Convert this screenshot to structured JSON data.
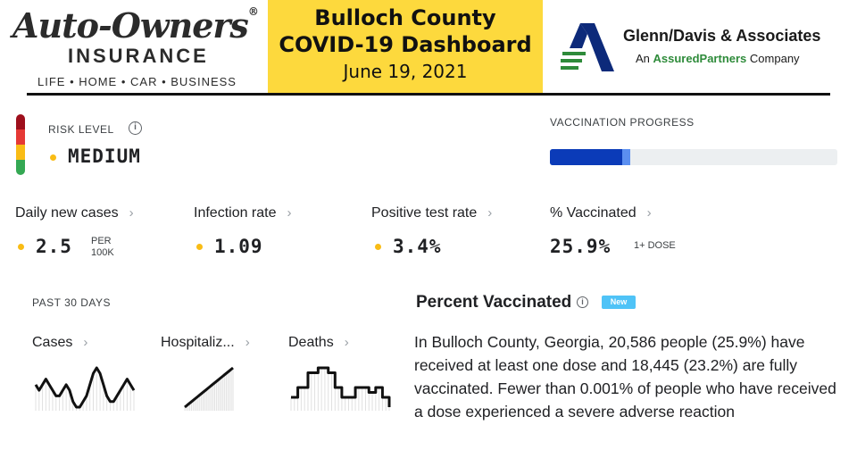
{
  "header": {
    "left_logo": {
      "name": "Auto-Owners",
      "subname": "INSURANCE",
      "tagline": "LIFE • HOME • CAR • BUSINESS",
      "registered_mark": "®"
    },
    "title": {
      "line1": "Bulloch County",
      "line2": "COVID-19 Dashboard",
      "date": "June 19, 2021",
      "background": "#fdd93d"
    },
    "right_logo": {
      "name": "Glenn/Davis & Associates",
      "sub_prefix": "An ",
      "sub_brand": "AssuredPartners",
      "sub_suffix": " Company"
    }
  },
  "risk": {
    "label": "RISK LEVEL",
    "info_icon": "info-circle-icon",
    "value": "MEDIUM",
    "dot_color": "#f9bc15",
    "scale_colors": [
      "#9e0f1c",
      "#e53935",
      "#f9bc15",
      "#34a853"
    ]
  },
  "vaccination_progress": {
    "label": "VACCINATION PROGRESS",
    "at_least_one_dose_fraction": 0.259,
    "fully_vaccinated_fraction": 0.232,
    "colors": {
      "fully": "#0b3bb8",
      "one_dose": "#5b8ff0",
      "track": "#eceff1"
    }
  },
  "metrics": [
    {
      "title": "Daily new cases",
      "value": "2.5",
      "unit_line1": "PER",
      "unit_line2": "100K",
      "has_dot": true
    },
    {
      "title": "Infection rate",
      "value": "1.09",
      "unit_line1": "",
      "unit_line2": "",
      "has_dot": true
    },
    {
      "title": "Positive test rate",
      "value": "3.4%",
      "unit_line1": "",
      "unit_line2": "",
      "has_dot": true
    },
    {
      "title": "% Vaccinated",
      "value": "25.9%",
      "unit_line1": "1+ DOSE",
      "unit_line2": "",
      "has_dot": false
    }
  ],
  "past30": {
    "label": "PAST 30 DAYS",
    "charts": [
      {
        "title": "Cases",
        "values": [
          6,
          5,
          6,
          7,
          6,
          5,
          4,
          4,
          5,
          6,
          5,
          3,
          2,
          2,
          3,
          4,
          6,
          8,
          9,
          8,
          6,
          4,
          3,
          3,
          4,
          5,
          6,
          7,
          6,
          5
        ]
      },
      {
        "title": "Hospitaliz...",
        "values": [
          0,
          1,
          2,
          3,
          4,
          5,
          6,
          7,
          8,
          9,
          10,
          11,
          12,
          13,
          14,
          15,
          16,
          17,
          18,
          19,
          20,
          21,
          22,
          23,
          24,
          25,
          26,
          27,
          28,
          29
        ]
      },
      {
        "title": "Deaths",
        "values": [
          3,
          3,
          5,
          5,
          5,
          8,
          8,
          8,
          9,
          9,
          9,
          8,
          8,
          5,
          5,
          3,
          3,
          3,
          3,
          5,
          5,
          5,
          5,
          4,
          4,
          5,
          5,
          3,
          3,
          1
        ]
      }
    ]
  },
  "percent_vaccinated": {
    "title": "Percent Vaccinated",
    "info_icon": "info-circle-icon",
    "badge": "New",
    "text": "In Bulloch County, Georgia, 20,586 people (25.9%) have received at least one dose and 18,445 (23.2%) are fully vaccinated. Fewer than 0.001% of people who have received a dose experienced a severe adverse reaction"
  }
}
